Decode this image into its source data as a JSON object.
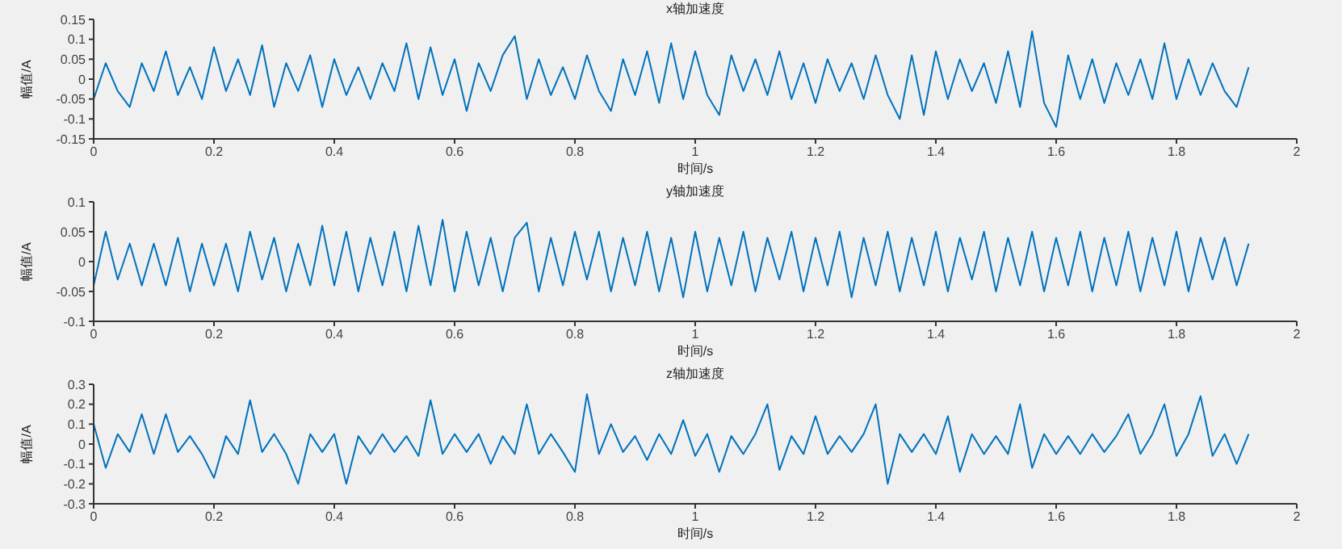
{
  "chart_data": [
    {
      "type": "line",
      "title": "x轴加速度",
      "xlabel": "时间/s",
      "ylabel": "幅值/A",
      "xlim": [
        0,
        2
      ],
      "xticks": [
        0,
        0.2,
        0.4,
        0.6,
        0.8,
        1,
        1.2,
        1.4,
        1.6,
        1.8,
        2
      ],
      "ylim": [
        -0.15,
        0.15
      ],
      "yticks": [
        -0.15,
        -0.1,
        -0.05,
        0,
        0.05,
        0.1,
        0.15
      ],
      "marker": "none",
      "line_style": "solid",
      "x": [
        0,
        0.02,
        0.04,
        0.06,
        0.08,
        0.1,
        0.12,
        0.14,
        0.16,
        0.18,
        0.2,
        0.22,
        0.24,
        0.26,
        0.28,
        0.3,
        0.32,
        0.34,
        0.36,
        0.38,
        0.4,
        0.42,
        0.44,
        0.46,
        0.48,
        0.5,
        0.52,
        0.54,
        0.56,
        0.58,
        0.6,
        0.62,
        0.64,
        0.66,
        0.68,
        0.7,
        0.72,
        0.74,
        0.76,
        0.78,
        0.8,
        0.82,
        0.84,
        0.86,
        0.88,
        0.9,
        0.92,
        0.94,
        0.96,
        0.98,
        1,
        1.02,
        1.04,
        1.06,
        1.08,
        1.1,
        1.12,
        1.14,
        1.16,
        1.18,
        1.2,
        1.22,
        1.24,
        1.26,
        1.28,
        1.3,
        1.32,
        1.34,
        1.36,
        1.38,
        1.4,
        1.42,
        1.44,
        1.46,
        1.48,
        1.5,
        1.52,
        1.54,
        1.56,
        1.58,
        1.6,
        1.62,
        1.64,
        1.66,
        1.68,
        1.7,
        1.72,
        1.74,
        1.76,
        1.78,
        1.8,
        1.82,
        1.84,
        1.86,
        1.88,
        1.9,
        1.92
      ],
      "series": [
        {
          "color": "#0072bd",
          "values": [
            -0.05,
            0.04,
            -0.03,
            -0.07,
            0.04,
            -0.03,
            0.07,
            -0.04,
            0.03,
            -0.05,
            0.08,
            -0.03,
            0.05,
            -0.04,
            0.085,
            -0.07,
            0.04,
            -0.03,
            0.06,
            -0.07,
            0.05,
            -0.04,
            0.03,
            -0.05,
            0.04,
            -0.03,
            0.09,
            -0.05,
            0.08,
            -0.04,
            0.05,
            -0.08,
            0.04,
            -0.03,
            0.06,
            0.108,
            -0.05,
            0.05,
            -0.04,
            0.03,
            -0.05,
            0.06,
            -0.03,
            -0.08,
            0.05,
            -0.04,
            0.07,
            -0.06,
            0.09,
            -0.05,
            0.07,
            -0.04,
            -0.09,
            0.06,
            -0.03,
            0.05,
            -0.04,
            0.07,
            -0.05,
            0.04,
            -0.06,
            0.05,
            -0.03,
            0.04,
            -0.05,
            0.06,
            -0.04,
            -0.1,
            0.06,
            -0.09,
            0.07,
            -0.05,
            0.05,
            -0.03,
            0.04,
            -0.06,
            0.07,
            -0.07,
            0.12,
            -0.06,
            -0.12,
            0.06,
            -0.05,
            0.05,
            -0.06,
            0.04,
            -0.04,
            0.05,
            -0.05,
            0.09,
            -0.05,
            0.05,
            -0.04,
            0.04,
            -0.03,
            -0.07,
            0.03
          ]
        }
      ]
    },
    {
      "type": "line",
      "title": "y轴加速度",
      "xlabel": "时间/s",
      "ylabel": "幅值/A",
      "xlim": [
        0,
        2
      ],
      "xticks": [
        0,
        0.2,
        0.4,
        0.6,
        0.8,
        1,
        1.2,
        1.4,
        1.6,
        1.8,
        2
      ],
      "ylim": [
        -0.1,
        0.1
      ],
      "yticks": [
        -0.1,
        -0.05,
        0,
        0.05,
        0.1
      ],
      "marker": "none",
      "line_style": "solid",
      "x": [
        0,
        0.02,
        0.04,
        0.06,
        0.08,
        0.1,
        0.12,
        0.14,
        0.16,
        0.18,
        0.2,
        0.22,
        0.24,
        0.26,
        0.28,
        0.3,
        0.32,
        0.34,
        0.36,
        0.38,
        0.4,
        0.42,
        0.44,
        0.46,
        0.48,
        0.5,
        0.52,
        0.54,
        0.56,
        0.58,
        0.6,
        0.62,
        0.64,
        0.66,
        0.68,
        0.7,
        0.72,
        0.74,
        0.76,
        0.78,
        0.8,
        0.82,
        0.84,
        0.86,
        0.88,
        0.9,
        0.92,
        0.94,
        0.96,
        0.98,
        1,
        1.02,
        1.04,
        1.06,
        1.08,
        1.1,
        1.12,
        1.14,
        1.16,
        1.18,
        1.2,
        1.22,
        1.24,
        1.26,
        1.28,
        1.3,
        1.32,
        1.34,
        1.36,
        1.38,
        1.4,
        1.42,
        1.44,
        1.46,
        1.48,
        1.5,
        1.52,
        1.54,
        1.56,
        1.58,
        1.6,
        1.62,
        1.64,
        1.66,
        1.68,
        1.7,
        1.72,
        1.74,
        1.76,
        1.78,
        1.8,
        1.82,
        1.84,
        1.86,
        1.88,
        1.9,
        1.92
      ],
      "series": [
        {
          "color": "#0072bd",
          "values": [
            -0.04,
            0.05,
            -0.03,
            0.03,
            -0.04,
            0.03,
            -0.04,
            0.04,
            -0.05,
            0.03,
            -0.04,
            0.03,
            -0.05,
            0.05,
            -0.03,
            0.04,
            -0.05,
            0.03,
            -0.04,
            0.06,
            -0.04,
            0.05,
            -0.05,
            0.04,
            -0.04,
            0.05,
            -0.05,
            0.06,
            -0.04,
            0.07,
            -0.05,
            0.05,
            -0.04,
            0.04,
            -0.05,
            0.04,
            0.065,
            -0.05,
            0.04,
            -0.04,
            0.05,
            -0.03,
            0.05,
            -0.05,
            0.04,
            -0.04,
            0.05,
            -0.05,
            0.04,
            -0.06,
            0.05,
            -0.05,
            0.04,
            -0.04,
            0.05,
            -0.05,
            0.04,
            -0.03,
            0.05,
            -0.05,
            0.04,
            -0.04,
            0.05,
            -0.06,
            0.04,
            -0.04,
            0.05,
            -0.05,
            0.04,
            -0.04,
            0.05,
            -0.05,
            0.04,
            -0.03,
            0.05,
            -0.05,
            0.04,
            -0.04,
            0.05,
            -0.05,
            0.04,
            -0.04,
            0.05,
            -0.05,
            0.04,
            -0.04,
            0.05,
            -0.05,
            0.04,
            -0.04,
            0.05,
            -0.05,
            0.04,
            -0.03,
            0.04,
            -0.04,
            0.03
          ]
        }
      ]
    },
    {
      "type": "line",
      "title": "z轴加速度",
      "xlabel": "时间/s",
      "ylabel": "幅值/A",
      "xlim": [
        0,
        2
      ],
      "xticks": [
        0,
        0.2,
        0.4,
        0.6,
        0.8,
        1,
        1.2,
        1.4,
        1.6,
        1.8,
        2
      ],
      "ylim": [
        -0.3,
        0.3
      ],
      "yticks": [
        -0.3,
        -0.2,
        -0.1,
        0,
        0.1,
        0.2,
        0.3
      ],
      "marker": "none",
      "line_style": "solid",
      "x": [
        0,
        0.02,
        0.04,
        0.06,
        0.08,
        0.1,
        0.12,
        0.14,
        0.16,
        0.18,
        0.2,
        0.22,
        0.24,
        0.26,
        0.28,
        0.3,
        0.32,
        0.34,
        0.36,
        0.38,
        0.4,
        0.42,
        0.44,
        0.46,
        0.48,
        0.5,
        0.52,
        0.54,
        0.56,
        0.58,
        0.6,
        0.62,
        0.64,
        0.66,
        0.68,
        0.7,
        0.72,
        0.74,
        0.76,
        0.78,
        0.8,
        0.82,
        0.84,
        0.86,
        0.88,
        0.9,
        0.92,
        0.94,
        0.96,
        0.98,
        1,
        1.02,
        1.04,
        1.06,
        1.08,
        1.1,
        1.12,
        1.14,
        1.16,
        1.18,
        1.2,
        1.22,
        1.24,
        1.26,
        1.28,
        1.3,
        1.32,
        1.34,
        1.36,
        1.38,
        1.4,
        1.42,
        1.44,
        1.46,
        1.48,
        1.5,
        1.52,
        1.54,
        1.56,
        1.58,
        1.6,
        1.62,
        1.64,
        1.66,
        1.68,
        1.7,
        1.72,
        1.74,
        1.76,
        1.78,
        1.8,
        1.82,
        1.84,
        1.86,
        1.88,
        1.9,
        1.92
      ],
      "series": [
        {
          "color": "#0072bd",
          "values": [
            0.1,
            -0.12,
            0.05,
            -0.04,
            0.15,
            -0.05,
            0.15,
            -0.04,
            0.04,
            -0.05,
            -0.17,
            0.04,
            -0.05,
            0.22,
            -0.04,
            0.05,
            -0.05,
            -0.2,
            0.05,
            -0.04,
            0.05,
            -0.2,
            0.04,
            -0.05,
            0.05,
            -0.04,
            0.04,
            -0.06,
            0.22,
            -0.05,
            0.05,
            -0.04,
            0.05,
            -0.1,
            0.04,
            -0.05,
            0.2,
            -0.05,
            0.05,
            -0.04,
            -0.14,
            0.25,
            -0.05,
            0.1,
            -0.04,
            0.04,
            -0.08,
            0.05,
            -0.05,
            0.12,
            -0.06,
            0.05,
            -0.14,
            0.04,
            -0.05,
            0.05,
            0.2,
            -0.13,
            0.04,
            -0.05,
            0.14,
            -0.05,
            0.04,
            -0.04,
            0.05,
            0.2,
            -0.2,
            0.05,
            -0.04,
            0.05,
            -0.05,
            0.14,
            -0.14,
            0.05,
            -0.05,
            0.04,
            -0.05,
            0.2,
            -0.12,
            0.05,
            -0.05,
            0.04,
            -0.05,
            0.05,
            -0.04,
            0.04,
            0.15,
            -0.05,
            0.05,
            0.2,
            -0.06,
            0.05,
            0.24,
            -0.06,
            0.05,
            -0.1,
            0.05
          ]
        }
      ]
    }
  ]
}
